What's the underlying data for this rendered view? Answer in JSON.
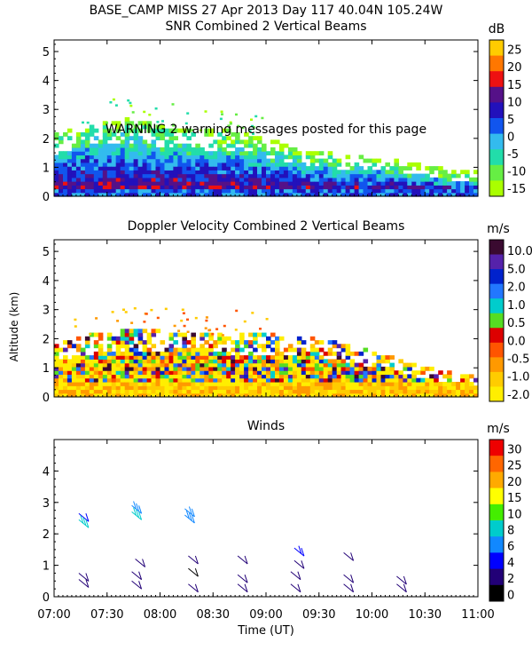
{
  "header": "BASE_CAMP MISS  27 Apr 2013 Day 117 40.04N 105.24W",
  "warning": "WARNING  2 warning messages posted for this page",
  "x_axis": {
    "label": "Time (UT)",
    "ticks": [
      "07:00",
      "07:30",
      "08:00",
      "08:30",
      "09:00",
      "09:30",
      "10:00",
      "10:30",
      "11:00"
    ],
    "range_minutes": [
      420,
      660
    ]
  },
  "y_axis_label": "Altitude (km)",
  "colors": {
    "snr": [
      "#aaff00",
      "#66ee44",
      "#22ddaa",
      "#33bbee",
      "#1155ee",
      "#2211bb",
      "#551188",
      "#ee1111",
      "#ff7700",
      "#ffcc00"
    ],
    "doppler": [
      "#ffee00",
      "#ffcc00",
      "#ff9900",
      "#ff5500",
      "#dd0000",
      "#55dd22",
      "#00cccc",
      "#2277ff",
      "#0022cc",
      "#5522aa",
      "#3a0a30"
    ],
    "winds": [
      "#000000",
      "#220077",
      "#0000ff",
      "#1188ff",
      "#00cccc",
      "#44ee00",
      "#ffff00",
      "#ffaa00",
      "#ff6600",
      "#ee0000"
    ]
  },
  "chart_data": [
    {
      "id": "snr",
      "type": "heatmap",
      "title": "SNR Combined 2 Vertical Beams",
      "unit": "dB",
      "ylim": [
        0,
        5.4
      ],
      "yticks": [
        0,
        1,
        2,
        3,
        4,
        5
      ],
      "colorbar_labels": [
        "25",
        "20",
        "15",
        "10",
        "5",
        "0",
        "-5",
        "-10",
        "-15"
      ],
      "colorbar_range": [
        -15,
        30
      ],
      "profile_max_km": [
        {
          "t": 420,
          "h": 1.9
        },
        {
          "t": 440,
          "h": 2.3
        },
        {
          "t": 460,
          "h": 2.4
        },
        {
          "t": 480,
          "h": 2.2
        },
        {
          "t": 500,
          "h": 2.1
        },
        {
          "t": 520,
          "h": 2.0
        },
        {
          "t": 540,
          "h": 1.7
        },
        {
          "t": 560,
          "h": 1.4
        },
        {
          "t": 580,
          "h": 1.2
        },
        {
          "t": 600,
          "h": 1.1
        },
        {
          "t": 620,
          "h": 0.9
        },
        {
          "t": 640,
          "h": 0.7
        },
        {
          "t": 660,
          "h": 0.6
        }
      ]
    },
    {
      "id": "doppler",
      "type": "heatmap",
      "title": "Doppler Velocity Combined 2 Vertical Beams",
      "unit": "m/s",
      "ylim": [
        0,
        5.4
      ],
      "yticks": [
        0,
        1,
        2,
        3,
        4,
        5
      ],
      "colorbar_labels": [
        "10.0",
        "5.0",
        "2.0",
        "1.0",
        "0.5",
        "0.0",
        "-0.5",
        "-1.0",
        "-2.0"
      ],
      "profile_max_km": [
        {
          "t": 420,
          "h": 1.6
        },
        {
          "t": 440,
          "h": 1.9
        },
        {
          "t": 460,
          "h": 2.1
        },
        {
          "t": 480,
          "h": 2.0
        },
        {
          "t": 500,
          "h": 2.0
        },
        {
          "t": 520,
          "h": 1.9
        },
        {
          "t": 540,
          "h": 1.9
        },
        {
          "t": 560,
          "h": 1.8
        },
        {
          "t": 580,
          "h": 1.6
        },
        {
          "t": 600,
          "h": 1.3
        },
        {
          "t": 620,
          "h": 0.9
        },
        {
          "t": 640,
          "h": 0.6
        },
        {
          "t": 660,
          "h": 0.5
        }
      ]
    },
    {
      "id": "winds",
      "type": "scatter",
      "title": "Winds",
      "unit": "m/s",
      "ylim": [
        0,
        5.0
      ],
      "yticks": [
        0,
        1,
        2,
        3,
        4
      ],
      "colorbar_labels": [
        "30",
        "25",
        "20",
        "15",
        "10",
        "8",
        "6",
        "4",
        "2",
        "0"
      ],
      "barbs": [
        {
          "t": 434,
          "h": 0.55,
          "speed": 3
        },
        {
          "t": 434,
          "h": 0.75,
          "speed": 4
        },
        {
          "t": 434,
          "h": 2.65,
          "speed": 5
        },
        {
          "t": 434,
          "h": 2.45,
          "speed": 14
        },
        {
          "t": 464,
          "h": 0.5,
          "speed": 3
        },
        {
          "t": 464,
          "h": 0.8,
          "speed": 3
        },
        {
          "t": 464,
          "h": 2.9,
          "speed": 10
        },
        {
          "t": 464,
          "h": 2.7,
          "speed": 12
        },
        {
          "t": 466,
          "h": 1.2,
          "speed": 4
        },
        {
          "t": 494,
          "h": 2.8,
          "speed": 9
        },
        {
          "t": 494,
          "h": 2.6,
          "speed": 10
        },
        {
          "t": 496,
          "h": 0.4,
          "speed": 3
        },
        {
          "t": 496,
          "h": 0.9,
          "speed": 1
        },
        {
          "t": 496,
          "h": 1.3,
          "speed": 2
        },
        {
          "t": 524,
          "h": 0.4,
          "speed": 3
        },
        {
          "t": 524,
          "h": 0.7,
          "speed": 2
        },
        {
          "t": 524,
          "h": 1.3,
          "speed": 4
        },
        {
          "t": 554,
          "h": 0.4,
          "speed": 3
        },
        {
          "t": 554,
          "h": 0.8,
          "speed": 2
        },
        {
          "t": 556,
          "h": 1.55,
          "speed": 7
        },
        {
          "t": 556,
          "h": 1.15,
          "speed": 4
        },
        {
          "t": 584,
          "h": 0.4,
          "speed": 3
        },
        {
          "t": 584,
          "h": 0.7,
          "speed": 3
        },
        {
          "t": 584,
          "h": 1.4,
          "speed": 3
        },
        {
          "t": 614,
          "h": 0.4,
          "speed": 3
        },
        {
          "t": 614,
          "h": 0.65,
          "speed": 3
        }
      ]
    }
  ]
}
